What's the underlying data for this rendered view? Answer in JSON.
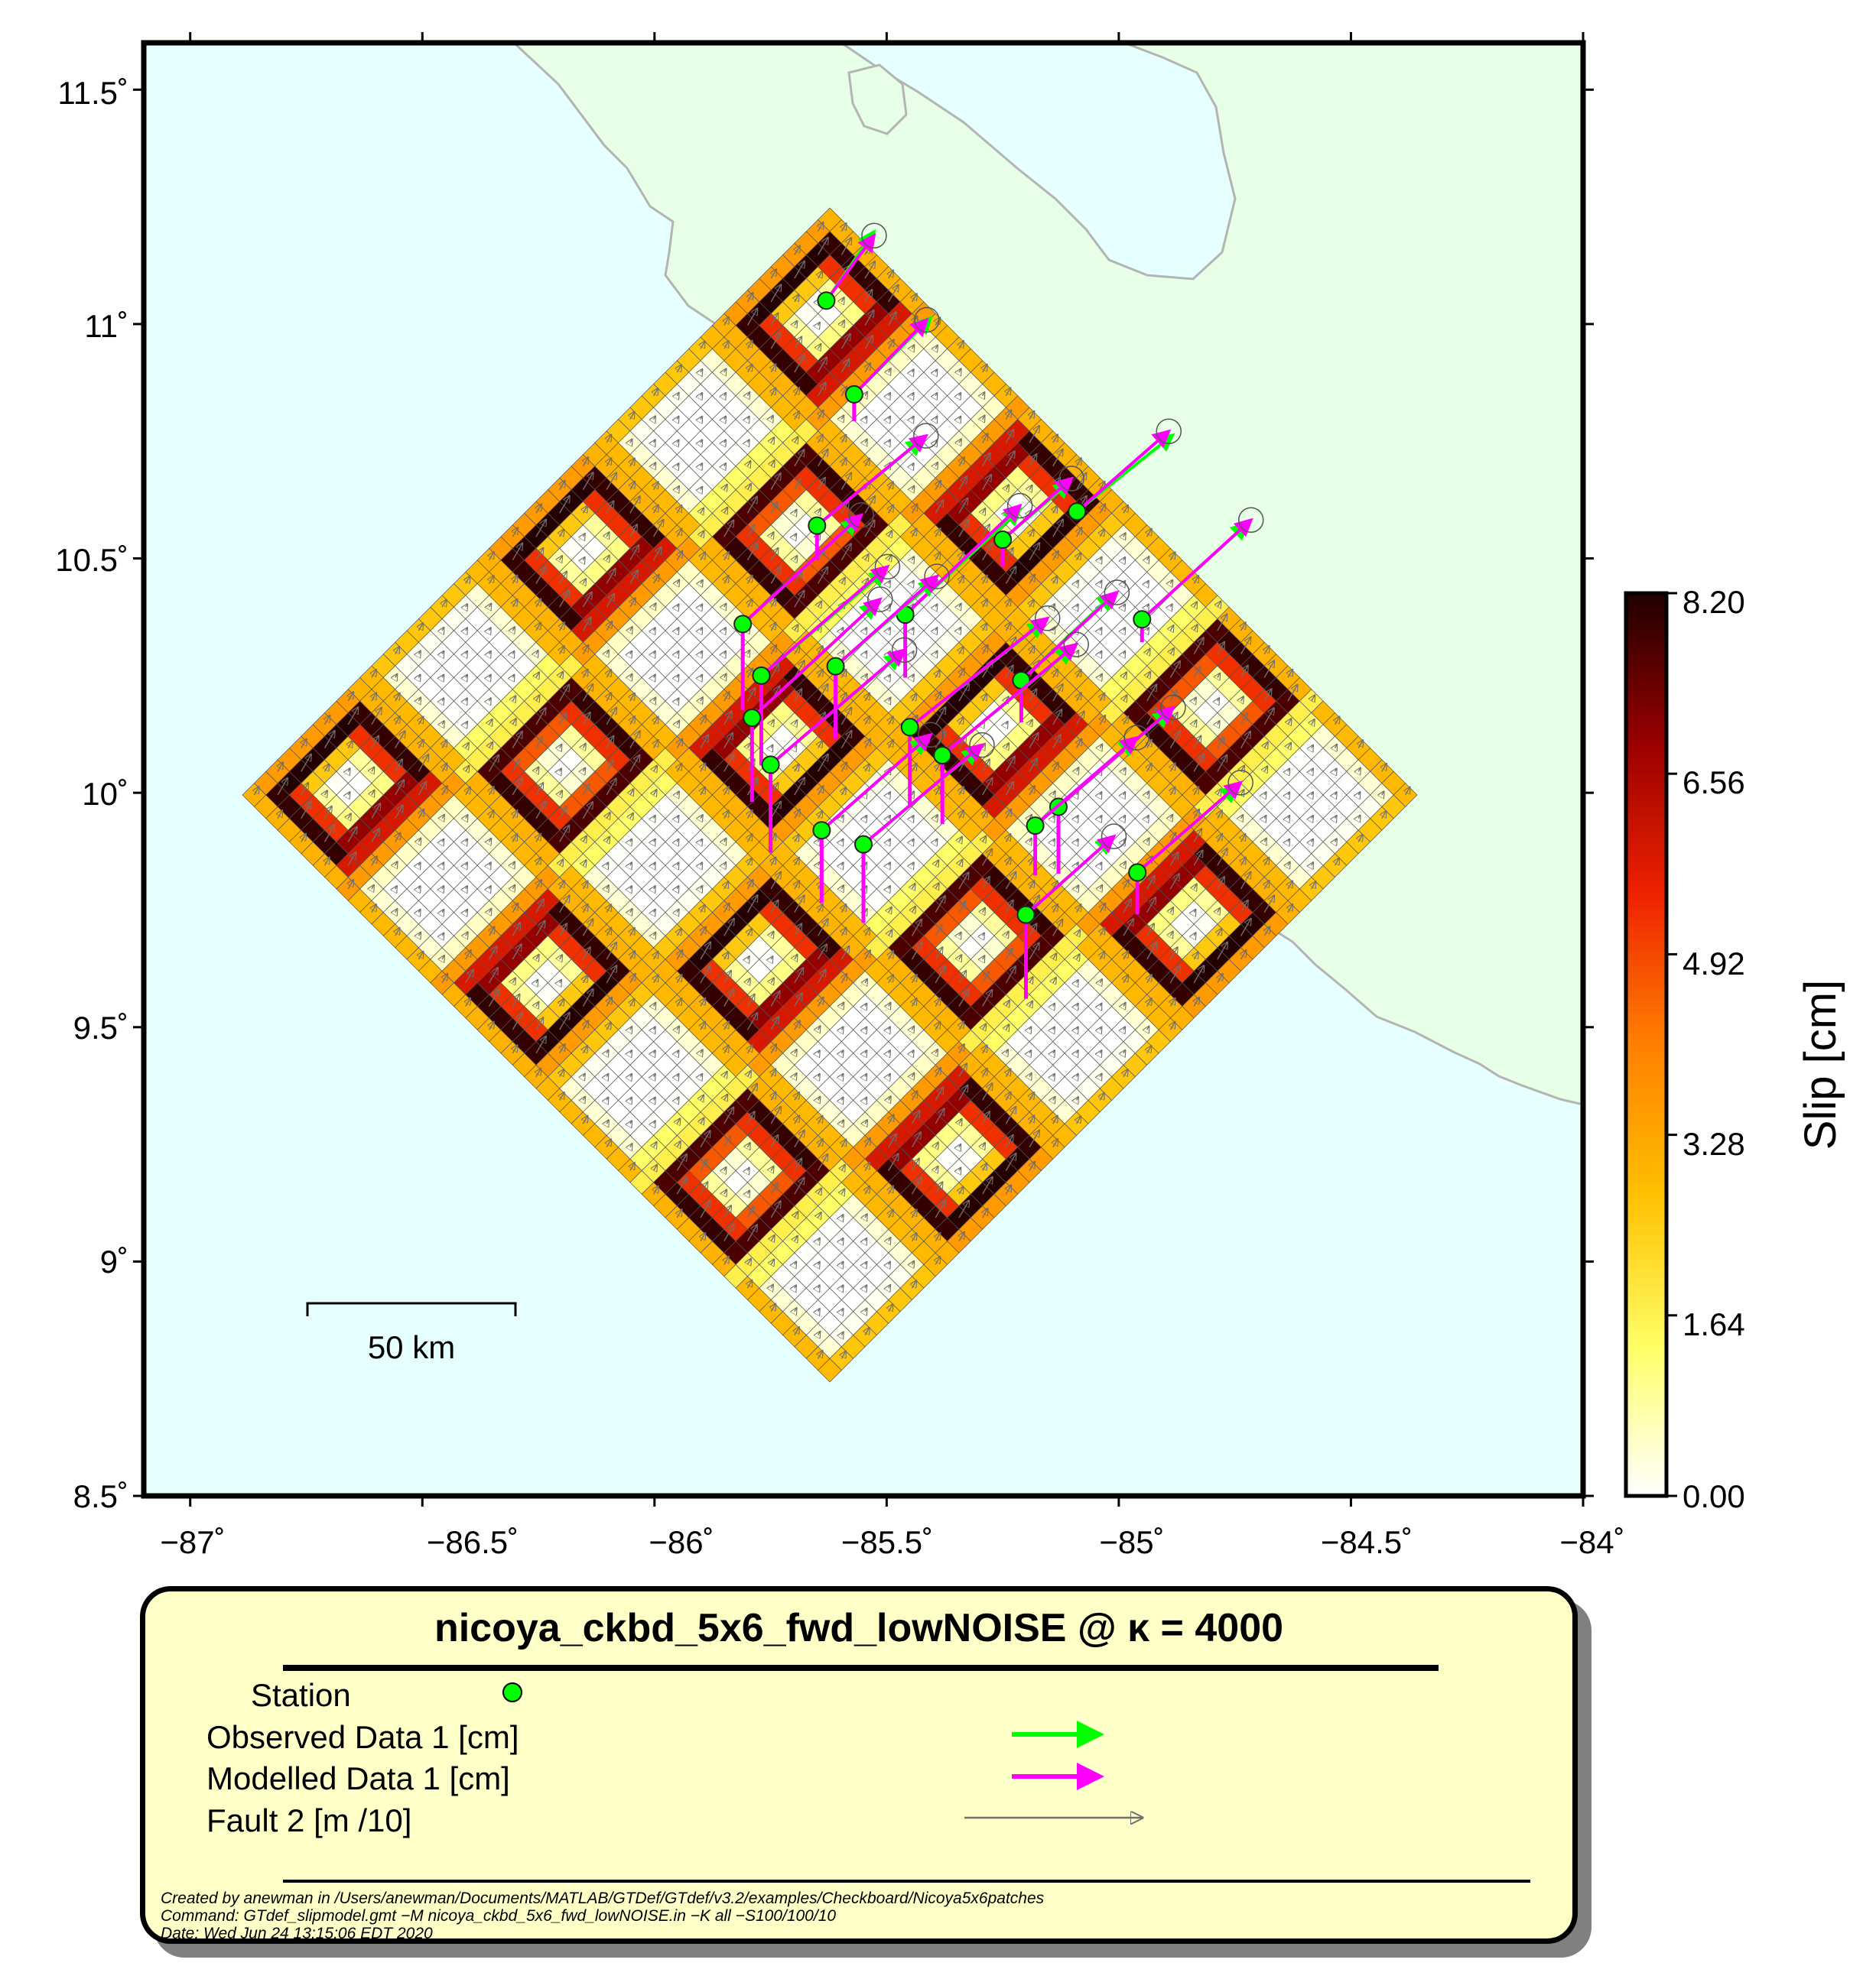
{
  "map": {
    "lat_ticks": [
      "11.5˚",
      "11˚",
      "10.5˚",
      "10˚",
      "9.5˚",
      "9˚",
      "8.5˚"
    ],
    "lon_ticks": [
      "−87˚",
      "−86.5˚",
      "−86˚",
      "−85.5˚",
      "−85˚",
      "−84.5˚",
      "−84˚"
    ],
    "scale_bar_label": "50 km",
    "ocean_color": "#e6ffff",
    "land_color": "#e6ffe6",
    "coastline_color": "#b4b4b4"
  },
  "colorbar": {
    "label": "Slip [cm]",
    "ticks": [
      "8.20",
      "6.56",
      "4.92",
      "3.28",
      "1.64",
      "0.00"
    ],
    "range": [
      0,
      8.2
    ],
    "colors": [
      "#ffffff",
      "#ffff66",
      "#ffc000",
      "#ff8000",
      "#ee2200",
      "#9a0000",
      "#200000"
    ]
  },
  "legend": {
    "title": "nicoya_ckbd_5x6_fwd_lowNOISE @ κ = 4000",
    "items": [
      {
        "label": "Station",
        "symbol": "station-dot",
        "color": "#00ff00"
      },
      {
        "label": "Observed Data 1 [cm]",
        "symbol": "arrow",
        "color": "#00ff00"
      },
      {
        "label": "Modelled Data 1 [cm]",
        "symbol": "arrow",
        "color": "#ff00ff"
      },
      {
        "label": "Fault 2 [m /10]",
        "symbol": "thin-arrow",
        "color": "#808080"
      }
    ]
  },
  "footer": {
    "created": "Created by anewman in /Users/anewman/Documents/MATLAB/GTDef/GTdef/v3.2/examples/Checkboard/Nicoya5x6patches",
    "command": "Command: GTdef_slipmodel.gmt −M nicoya_ckbd_5x6_fwd_lowNOISE.in −K all −S100/100/10",
    "date": "Date: Wed Jun 24 13:15:06 EDT 2020"
  },
  "stations": [
    {
      "lon": -85.63,
      "lat": 11.05,
      "obs": [
        25,
        -36
      ],
      "mod": [
        25,
        -34
      ],
      "down": 0
    },
    {
      "lon": -85.57,
      "lat": 10.85,
      "obs": [
        40,
        -40
      ],
      "mod": [
        38,
        -39
      ],
      "down": 14
    },
    {
      "lon": -85.65,
      "lat": 10.57,
      "obs": [
        55,
        -45
      ],
      "mod": [
        57,
        -47
      ],
      "down": 18
    },
    {
      "lon": -85.25,
      "lat": 10.54,
      "obs": [
        35,
        -30
      ],
      "mod": [
        36,
        -32
      ],
      "down": 14
    },
    {
      "lon": -85.09,
      "lat": 10.6,
      "obs": [
        50,
        -40
      ],
      "mod": [
        48,
        -42
      ],
      "down": 0
    },
    {
      "lon": -85.81,
      "lat": 10.36,
      "obs": [
        60,
        -55
      ],
      "mod": [
        62,
        -57
      ],
      "down": 45
    },
    {
      "lon": -85.46,
      "lat": 10.38,
      "obs": [
        60,
        -55
      ],
      "mod": [
        60,
        -57
      ],
      "down": 33
    },
    {
      "lon": -84.95,
      "lat": 10.37,
      "obs": [
        55,
        -50
      ],
      "mod": [
        57,
        -52
      ],
      "down": 12
    },
    {
      "lon": -85.77,
      "lat": 10.25,
      "obs": [
        65,
        -55
      ],
      "mod": [
        66,
        -57
      ],
      "down": 47
    },
    {
      "lon": -85.61,
      "lat": 10.27,
      "obs": [
        52,
        -45
      ],
      "mod": [
        53,
        -47
      ],
      "down": 38
    },
    {
      "lon": -85.21,
      "lat": 10.24,
      "obs": [
        48,
        -45
      ],
      "mod": [
        50,
        -46
      ],
      "down": 22
    },
    {
      "lon": -85.79,
      "lat": 10.16,
      "obs": [
        65,
        -60
      ],
      "mod": [
        67,
        -62
      ],
      "down": 44
    },
    {
      "lon": -85.45,
      "lat": 10.14,
      "obs": [
        70,
        -55
      ],
      "mod": [
        72,
        -57
      ],
      "down": 42
    },
    {
      "lon": -85.75,
      "lat": 10.06,
      "obs": [
        68,
        -58
      ],
      "mod": [
        70,
        -60
      ],
      "down": 46
    },
    {
      "lon": -85.38,
      "lat": 10.08,
      "obs": [
        68,
        -56
      ],
      "mod": [
        70,
        -58
      ],
      "down": 36
    },
    {
      "lon": -85.13,
      "lat": 9.97,
      "obs": [
        58,
        -50
      ],
      "mod": [
        60,
        -52
      ],
      "down": 35
    },
    {
      "lon": -85.18,
      "lat": 9.93,
      "obs": [
        52,
        -45
      ],
      "mod": [
        53,
        -46
      ],
      "down": 26
    },
    {
      "lon": -85.64,
      "lat": 9.92,
      "obs": [
        55,
        -48
      ],
      "mod": [
        57,
        -50
      ],
      "down": 38
    },
    {
      "lon": -85.55,
      "lat": 9.89,
      "obs": [
        60,
        -50
      ],
      "mod": [
        62,
        -52
      ],
      "down": 41
    },
    {
      "lon": -84.96,
      "lat": 9.83,
      "obs": [
        52,
        -45
      ],
      "mod": [
        54,
        -47
      ],
      "down": 22
    },
    {
      "lon": -85.2,
      "lat": 9.74,
      "obs": [
        45,
        -40
      ],
      "mod": [
        46,
        -41
      ],
      "down": 44
    }
  ]
}
